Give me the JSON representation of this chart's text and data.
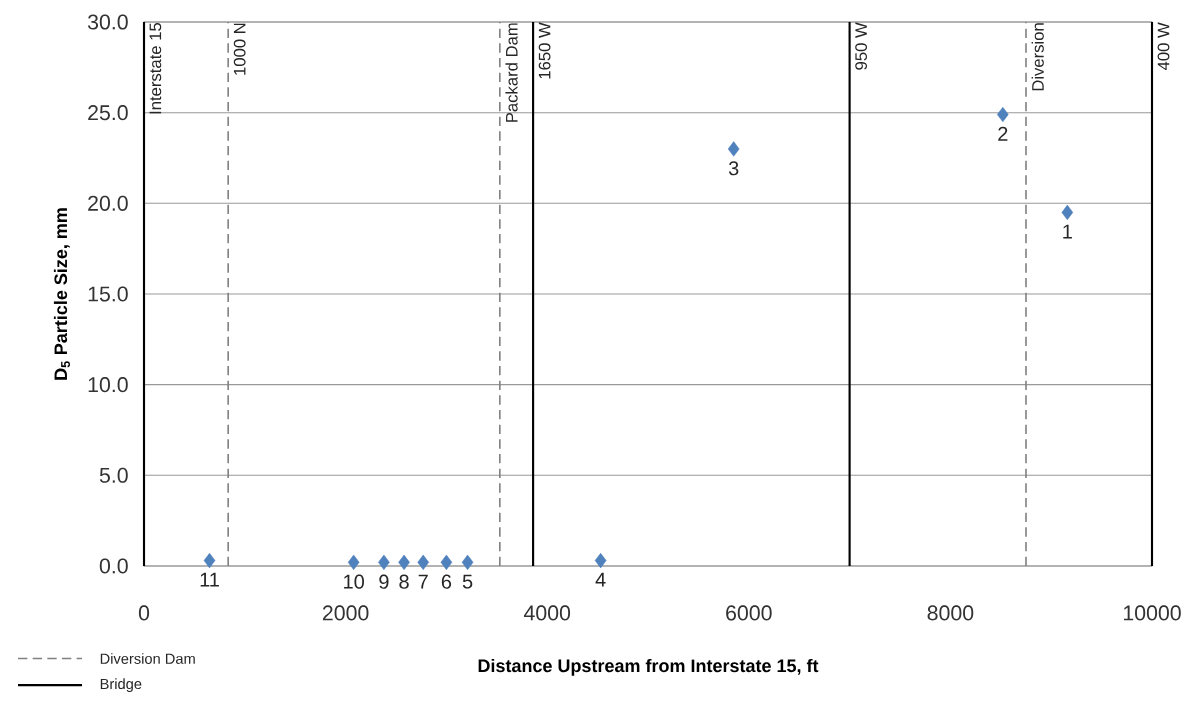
{
  "chart_data": {
    "type": "scatter",
    "xlabel": "Distance Upstream from Interstate 15, ft",
    "ylabel": "D$_{5}$ Particle Size, mm",
    "xlim": [
      0,
      10000
    ],
    "ylim": [
      0,
      30
    ],
    "xticks": [
      0,
      2000,
      4000,
      6000,
      8000,
      10000
    ],
    "yticks": [
      {
        "value": 0,
        "label": "0.0"
      },
      {
        "value": 5,
        "label": "5.0"
      },
      {
        "value": 10,
        "label": "10.0"
      },
      {
        "value": 15,
        "label": "15.0"
      },
      {
        "value": 20,
        "label": "20.0"
      },
      {
        "value": 25,
        "label": "25.0"
      },
      {
        "value": 30,
        "label": "30.0"
      }
    ],
    "grid": "y",
    "marker": "diamond",
    "series": [
      {
        "color": "#4f81bd",
        "x": [
          650,
          2080,
          2380,
          2580,
          2770,
          3000,
          3210,
          4530,
          5850,
          8520,
          9160
        ],
        "values": [
          0.3,
          0.2,
          0.2,
          0.2,
          0.2,
          0.2,
          0.2,
          0.3,
          23.0,
          24.9,
          19.5
        ]
      }
    ],
    "ref_lines": [
      {
        "axis": "x",
        "value": 835,
        "label": "1000 N",
        "color": "#808080",
        "line_style": "dashed"
      },
      {
        "axis": "x",
        "value": 0,
        "label": "Interstate 15",
        "color": "#000000",
        "line_style": "solid"
      },
      {
        "axis": "x",
        "value": 3530,
        "label": "Packard Dam",
        "color": "#808080",
        "line_style": "dashed"
      },
      {
        "axis": "x",
        "value": 3860,
        "label": "1650 W",
        "color": "#000000",
        "line_style": "solid"
      },
      {
        "axis": "x",
        "value": 7000,
        "label": "950 W",
        "color": "#000000",
        "line_style": "solid"
      },
      {
        "axis": "x",
        "value": 8750,
        "label": "Diversion",
        "color": "#808080",
        "line_style": "dashed"
      },
      {
        "axis": "x",
        "value": 10000,
        "label": "400 W",
        "color": "#000000",
        "line_style": "solid"
      }
    ],
    "annotations": [
      "Diversion Dam",
      "Bridge",
      {
        "text": "11",
        "x": 650,
        "y": 0.3
      },
      {
        "text": "10",
        "x": 2080,
        "y": 0.2
      },
      {
        "text": "9",
        "x": 2380,
        "y": 0.2
      },
      {
        "text": "8",
        "x": 2580,
        "y": 0.2
      },
      {
        "text": "7",
        "x": 2770,
        "y": 0.2
      },
      {
        "text": "6",
        "x": 3000,
        "y": 0.2
      },
      {
        "text": "5",
        "x": 3210,
        "y": 0.2
      },
      {
        "text": "4",
        "x": 4530,
        "y": 0.3
      },
      {
        "text": "3",
        "x": 5850,
        "y": 23.0
      },
      {
        "text": "2",
        "x": 8520,
        "y": 24.9
      },
      {
        "text": "1",
        "x": 9160,
        "y": 19.5
      }
    ]
  }
}
